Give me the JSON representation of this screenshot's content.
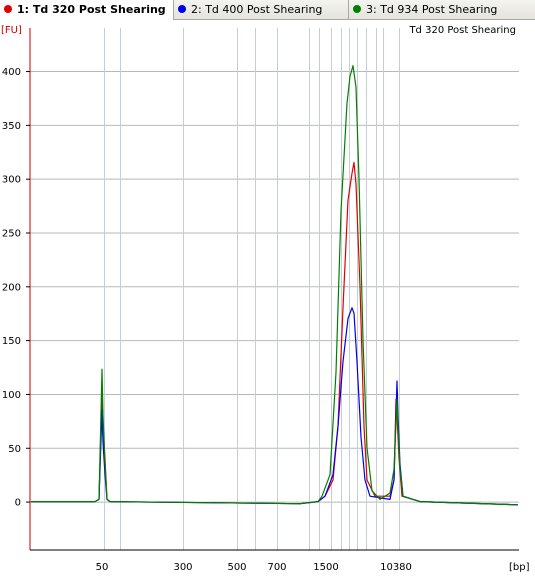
{
  "tabs": [
    {
      "label": "1: Td 320 Post Shearing",
      "color": "#e00000",
      "active": true
    },
    {
      "label": "2: Td 400 Post Shearing",
      "color": "#0000ee",
      "active": false
    },
    {
      "label": "3: Td 934 Post Shearing",
      "color": "#008000",
      "active": false
    }
  ],
  "chart_data": {
    "type": "line",
    "title": "Td 320 Post Shearing",
    "ylabel": "[FU]",
    "xlabel": "[bp]",
    "ylim": [
      -45,
      440
    ],
    "y_ticks": [
      0,
      50,
      100,
      150,
      200,
      250,
      300,
      350,
      400
    ],
    "x_tick_labels": [
      "50",
      "300",
      "500",
      "700",
      "1500",
      "10380"
    ],
    "grid": true,
    "series": [
      {
        "name": "Td 320 Post Shearing",
        "color": "#e00000",
        "points": [
          [
            31,
            0
          ],
          [
            95,
            0
          ],
          [
            99,
            2
          ],
          [
            102,
            100
          ],
          [
            103,
            70
          ],
          [
            105,
            40
          ],
          [
            107,
            2
          ],
          [
            110,
            0
          ],
          [
            300,
            -2
          ],
          [
            318,
            0
          ],
          [
            325,
            5
          ],
          [
            333,
            20
          ],
          [
            338,
            70
          ],
          [
            343,
            180
          ],
          [
            348,
            280
          ],
          [
            352,
            305
          ],
          [
            354,
            315
          ],
          [
            356,
            295
          ],
          [
            360,
            200
          ],
          [
            364,
            70
          ],
          [
            367,
            20
          ],
          [
            375,
            5
          ],
          [
            390,
            5
          ],
          [
            394,
            20
          ],
          [
            396,
            95
          ],
          [
            397,
            80
          ],
          [
            399,
            40
          ],
          [
            402,
            5
          ],
          [
            420,
            0
          ],
          [
            518,
            -3
          ]
        ]
      },
      {
        "name": "Td 400 Post Shearing",
        "color": "#0000ee",
        "points": [
          [
            31,
            0
          ],
          [
            95,
            0
          ],
          [
            99,
            2
          ],
          [
            102,
            85
          ],
          [
            103,
            55
          ],
          [
            105,
            25
          ],
          [
            107,
            2
          ],
          [
            110,
            0
          ],
          [
            300,
            -2
          ],
          [
            318,
            0
          ],
          [
            325,
            5
          ],
          [
            333,
            25
          ],
          [
            338,
            70
          ],
          [
            343,
            130
          ],
          [
            348,
            170
          ],
          [
            352,
            180
          ],
          [
            354,
            175
          ],
          [
            357,
            130
          ],
          [
            361,
            60
          ],
          [
            365,
            20
          ],
          [
            370,
            5
          ],
          [
            390,
            2
          ],
          [
            394,
            20
          ],
          [
            397,
            112
          ],
          [
            398,
            80
          ],
          [
            400,
            35
          ],
          [
            403,
            5
          ],
          [
            420,
            0
          ],
          [
            518,
            -3
          ]
        ]
      },
      {
        "name": "Td 934 Post Shearing",
        "color": "#008000",
        "points": [
          [
            31,
            0
          ],
          [
            95,
            0
          ],
          [
            99,
            2
          ],
          [
            102,
            123
          ],
          [
            103,
            80
          ],
          [
            105,
            35
          ],
          [
            107,
            2
          ],
          [
            110,
            0
          ],
          [
            300,
            -2
          ],
          [
            318,
            0
          ],
          [
            322,
            5
          ],
          [
            330,
            25
          ],
          [
            336,
            120
          ],
          [
            341,
            270
          ],
          [
            347,
            370
          ],
          [
            350,
            395
          ],
          [
            353,
            405
          ],
          [
            356,
            385
          ],
          [
            359,
            300
          ],
          [
            363,
            150
          ],
          [
            367,
            50
          ],
          [
            372,
            10
          ],
          [
            380,
            2
          ],
          [
            390,
            8
          ],
          [
            394,
            30
          ],
          [
            397,
            95
          ],
          [
            398,
            70
          ],
          [
            400,
            30
          ],
          [
            403,
            5
          ],
          [
            420,
            0
          ],
          [
            518,
            -3
          ]
        ]
      }
    ]
  }
}
